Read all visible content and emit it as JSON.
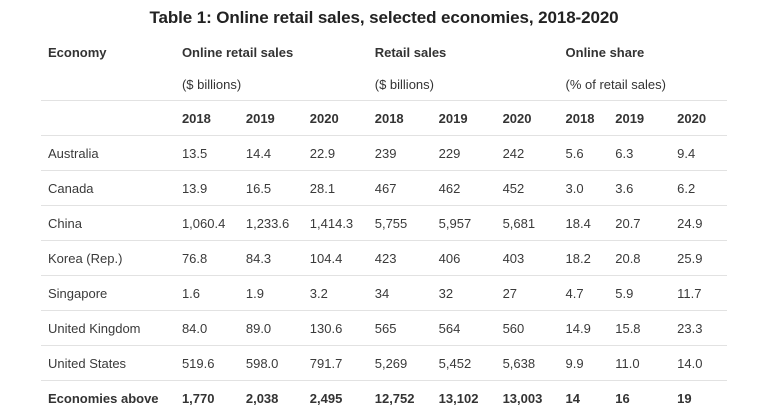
{
  "title": "Table 1: Online retail sales, selected economies, 2018-2020",
  "header": {
    "economy_label": "Economy",
    "groups": [
      {
        "label": "Online retail sales",
        "unit": "($ billions)"
      },
      {
        "label": "Retail sales",
        "unit": "($ billions)"
      },
      {
        "label": "Online share",
        "unit": "(% of retail sales)"
      }
    ],
    "years": [
      "2018",
      "2019",
      "2020",
      "2018",
      "2019",
      "2020",
      "2018",
      "2019",
      "2020"
    ]
  },
  "rows": [
    {
      "economy": "Australia",
      "values": [
        "13.5",
        "14.4",
        "22.9",
        "239",
        "229",
        "242",
        "5.6",
        "6.3",
        "9.4"
      ]
    },
    {
      "economy": "Canada",
      "values": [
        "13.9",
        "16.5",
        "28.1",
        "467",
        "462",
        "452",
        "3.0",
        "3.6",
        "6.2"
      ]
    },
    {
      "economy": "China",
      "values": [
        "1,060.4",
        "1,233.6",
        "1,414.3",
        "5,755",
        "5,957",
        "5,681",
        "18.4",
        "20.7",
        "24.9"
      ]
    },
    {
      "economy": "Korea (Rep.)",
      "values": [
        "76.8",
        "84.3",
        "104.4",
        "423",
        "406",
        "403",
        "18.2",
        "20.8",
        "25.9"
      ]
    },
    {
      "economy": "Singapore",
      "values": [
        "1.6",
        "1.9",
        "3.2",
        "34",
        "32",
        "27",
        "4.7",
        "5.9",
        "11.7"
      ]
    },
    {
      "economy": "United Kingdom",
      "values": [
        "84.0",
        "89.0",
        "130.6",
        "565",
        "564",
        "560",
        "14.9",
        "15.8",
        "23.3"
      ]
    },
    {
      "economy": "United States",
      "values": [
        "519.6",
        "598.0",
        "791.7",
        "5,269",
        "5,452",
        "5,638",
        "9.9",
        "11.0",
        "14.0"
      ]
    }
  ],
  "total": {
    "economy": "Economies above",
    "values": [
      "1,770",
      "2,038",
      "2,495",
      "12,752",
      "13,102",
      "13,003",
      "14",
      "16",
      "19"
    ]
  }
}
